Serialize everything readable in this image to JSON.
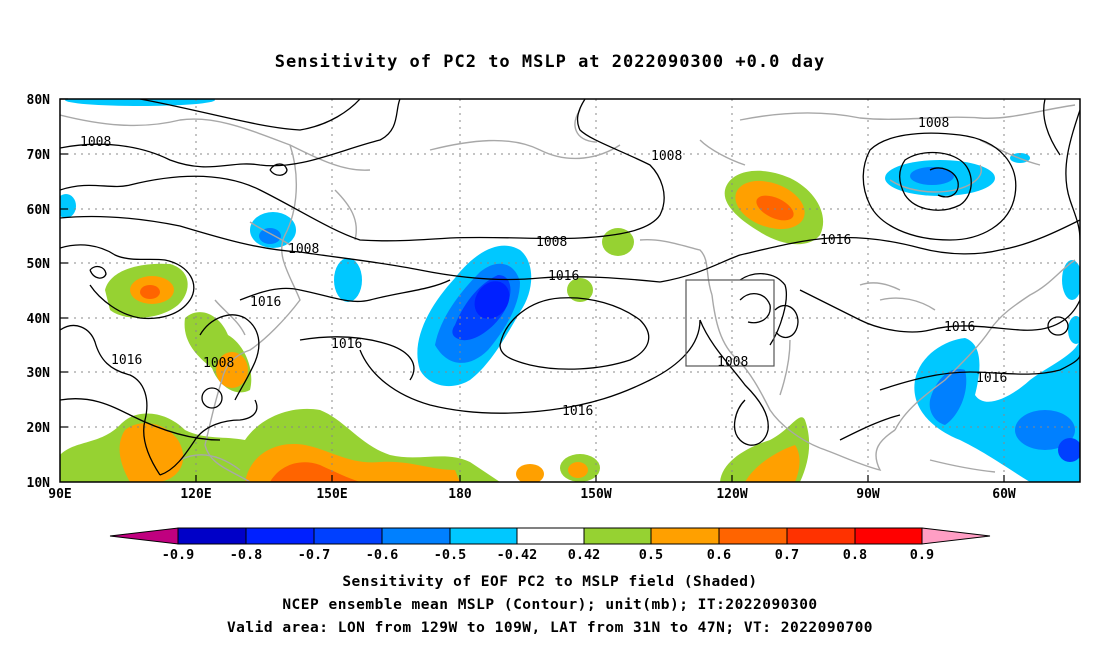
{
  "title": "Sensitivity of PC2 to MSLP at 2022090300 +0.0 day",
  "map": {
    "lat_labels": [
      "80N",
      "70N",
      "60N",
      "50N",
      "40N",
      "30N",
      "20N",
      "10N"
    ],
    "lon_labels": [
      "90E",
      "120E",
      "150E",
      "180",
      "150W",
      "120W",
      "90W",
      "60W"
    ],
    "contour_labels": {
      "c1": "1008",
      "c2": "1008",
      "c3": "1008",
      "c4": "1008",
      "c5": "1008",
      "c6": "1008",
      "c7": "1008",
      "c8": "1016",
      "c9": "1016",
      "c10": "1016",
      "c11": "1016",
      "c12": "1016",
      "c13": "1016",
      "c14": "1016",
      "c15": "1016"
    },
    "valid_area": {
      "lon_from": "129W",
      "lon_to": "109W",
      "lat_from": "31N",
      "lat_to": "47N"
    }
  },
  "colorbar": {
    "labels": [
      "-0.9",
      "-0.8",
      "-0.7",
      "-0.6",
      "-0.5",
      "-0.42",
      "0.42",
      "0.5",
      "0.6",
      "0.7",
      "0.8",
      "0.9"
    ],
    "colors": [
      "#c0007f",
      "#0000c8",
      "#0020ff",
      "#0040ff",
      "#0080ff",
      "#00c8ff",
      "#ffffff",
      "#96d232",
      "#ffa000",
      "#ff6400",
      "#ff3200",
      "#ff0000",
      "#ff9ec4"
    ]
  },
  "captions": {
    "line1": "Sensitivity of EOF PC2 to MSLP field (Shaded)",
    "line2": "NCEP ensemble mean MSLP (Contour); unit(mb); IT:2022090300",
    "line3": "Valid area: LON from 129W to 109W, LAT from 31N to 47N; VT: 2022090700"
  }
}
